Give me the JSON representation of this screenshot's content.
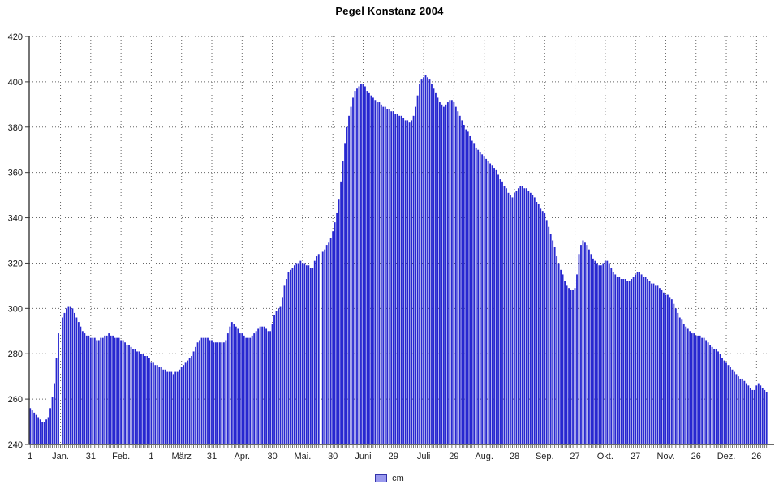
{
  "chart_data": {
    "type": "bar",
    "title": "Pegel Konstanz 2004",
    "legend_label": "cm",
    "unit": "cm",
    "ylim": [
      240,
      420
    ],
    "yticks": [
      240,
      260,
      280,
      300,
      320,
      340,
      360,
      380,
      400,
      420
    ],
    "grid": "dotted",
    "legend_position": "bottom-center",
    "colors": {
      "bar": "#2727d0",
      "axis": "#3a3a3a",
      "grid": "#666666",
      "legend_fill": "#9999ee",
      "legend_border": "#3333aa",
      "text": "#111111"
    },
    "xticks": [
      {
        "day": 1,
        "label": "1"
      },
      {
        "day": 16,
        "label": "Jan."
      },
      {
        "day": 31,
        "label": "31"
      },
      {
        "day": 46,
        "label": "Feb."
      },
      {
        "day": 61,
        "label": "1"
      },
      {
        "day": 76,
        "label": "März"
      },
      {
        "day": 91,
        "label": "31"
      },
      {
        "day": 106,
        "label": "Apr."
      },
      {
        "day": 121,
        "label": "30"
      },
      {
        "day": 136,
        "label": "Mai."
      },
      {
        "day": 151,
        "label": "30"
      },
      {
        "day": 166,
        "label": "Juni"
      },
      {
        "day": 181,
        "label": "29"
      },
      {
        "day": 196,
        "label": "Juli"
      },
      {
        "day": 211,
        "label": "29"
      },
      {
        "day": 226,
        "label": "Aug."
      },
      {
        "day": 241,
        "label": "28"
      },
      {
        "day": 256,
        "label": "Sep."
      },
      {
        "day": 271,
        "label": "27"
      },
      {
        "day": 286,
        "label": "Okt."
      },
      {
        "day": 301,
        "label": "27"
      },
      {
        "day": 316,
        "label": "Nov."
      },
      {
        "day": 331,
        "label": "26"
      },
      {
        "day": 346,
        "label": "Dez."
      },
      {
        "day": 361,
        "label": "26"
      }
    ],
    "values": [
      256,
      255,
      254,
      253,
      252,
      251,
      250,
      250,
      251,
      252,
      256,
      261,
      267,
      278,
      289,
      null,
      296,
      298,
      300,
      301,
      301,
      300,
      298,
      296,
      294,
      292,
      290,
      289,
      288,
      288,
      287,
      287,
      287,
      286,
      286,
      287,
      287,
      288,
      288,
      289,
      288,
      288,
      287,
      287,
      287,
      286,
      286,
      285,
      284,
      284,
      283,
      282,
      282,
      281,
      281,
      280,
      280,
      279,
      279,
      278,
      276,
      276,
      275,
      275,
      274,
      274,
      273,
      273,
      272,
      272,
      272,
      271,
      272,
      272,
      273,
      274,
      275,
      276,
      277,
      278,
      279,
      281,
      283,
      285,
      286,
      287,
      287,
      287,
      287,
      286,
      286,
      285,
      285,
      285,
      285,
      285,
      285,
      286,
      289,
      292,
      294,
      293,
      292,
      291,
      289,
      289,
      288,
      287,
      287,
      287,
      288,
      289,
      290,
      291,
      292,
      292,
      292,
      291,
      290,
      290,
      293,
      297,
      299,
      300,
      301,
      305,
      310,
      313,
      316,
      317,
      318,
      319,
      320,
      320,
      321,
      320,
      320,
      319,
      319,
      318,
      318,
      321,
      323,
      324,
      null,
      325,
      326,
      328,
      329,
      331,
      334,
      338,
      342,
      348,
      356,
      365,
      373,
      380,
      385,
      389,
      393,
      396,
      397,
      398,
      399,
      399,
      398,
      396,
      395,
      394,
      393,
      392,
      391,
      391,
      390,
      389,
      389,
      388,
      388,
      387,
      387,
      386,
      386,
      385,
      385,
      384,
      383,
      383,
      382,
      383,
      385,
      389,
      394,
      399,
      401,
      402,
      403,
      402,
      401,
      399,
      397,
      395,
      393,
      391,
      390,
      389,
      390,
      391,
      392,
      392,
      391,
      389,
      387,
      385,
      383,
      381,
      379,
      378,
      376,
      374,
      373,
      371,
      370,
      369,
      368,
      367,
      366,
      365,
      364,
      363,
      362,
      361,
      359,
      357,
      356,
      354,
      353,
      351,
      350,
      349,
      351,
      352,
      353,
      354,
      354,
      353,
      353,
      352,
      351,
      350,
      349,
      347,
      346,
      344,
      343,
      342,
      339,
      336,
      333,
      330,
      327,
      323,
      320,
      317,
      315,
      312,
      310,
      309,
      308,
      308,
      309,
      315,
      324,
      328,
      330,
      329,
      328,
      326,
      324,
      322,
      321,
      320,
      319,
      319,
      320,
      321,
      321,
      320,
      318,
      316,
      315,
      314,
      314,
      313,
      313,
      313,
      312,
      312,
      313,
      314,
      315,
      316,
      316,
      315,
      314,
      314,
      313,
      312,
      311,
      311,
      310,
      310,
      309,
      308,
      307,
      306,
      306,
      305,
      304,
      302,
      300,
      298,
      296,
      295,
      293,
      292,
      291,
      290,
      289,
      289,
      288,
      288,
      288,
      287,
      287,
      286,
      285,
      284,
      283,
      282,
      282,
      281,
      280,
      278,
      277,
      276,
      275,
      274,
      273,
      272,
      271,
      270,
      269,
      269,
      268,
      267,
      266,
      265,
      264,
      264,
      266,
      267,
      266,
      265,
      264,
      263
    ]
  }
}
